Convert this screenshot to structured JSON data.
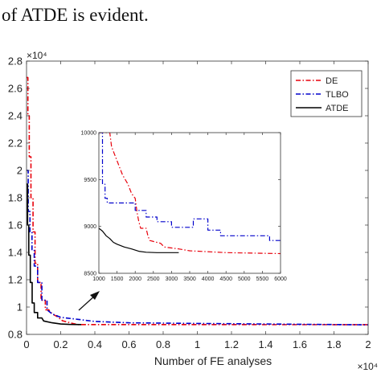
{
  "caption": "of ATDE is evident.",
  "chart_data": [
    {
      "type": "line",
      "title": "",
      "xlabel": "Number of FE analyses",
      "ylabel": "",
      "x_exponent": "×10⁴",
      "y_exponent": "×10⁴",
      "xlim": [
        0,
        20000
      ],
      "ylim": [
        8000,
        28000
      ],
      "x_ticks": [
        0,
        2000,
        4000,
        6000,
        8000,
        10000,
        12000,
        14000,
        16000,
        18000,
        20000
      ],
      "x_tick_labels": [
        "0",
        "0.2",
        "0.4",
        "0.6",
        "0.8",
        "1",
        "1.2",
        "1.4",
        "1.6",
        "1.8",
        "2"
      ],
      "y_ticks": [
        8000,
        10000,
        12000,
        14000,
        16000,
        18000,
        20000,
        22000,
        24000,
        26000,
        28000
      ],
      "y_tick_labels": [
        "0.8",
        "1",
        "1.2",
        "1.4",
        "1.6",
        "1.8",
        "2",
        "2.2",
        "2.4",
        "2.6",
        "2.8"
      ],
      "grid": false,
      "legend_position": "top-right",
      "series": [
        {
          "name": "DE",
          "color": "#e8000b",
          "style": "dashdot",
          "points": [
            [
              0,
              26800
            ],
            [
              80,
              26800
            ],
            [
              80,
              24000
            ],
            [
              160,
              24000
            ],
            [
              160,
              21000
            ],
            [
              260,
              21000
            ],
            [
              260,
              18000
            ],
            [
              380,
              18000
            ],
            [
              380,
              15500
            ],
            [
              500,
              15500
            ],
            [
              500,
              13200
            ],
            [
              650,
              13200
            ],
            [
              650,
              11800
            ],
            [
              850,
              11800
            ],
            [
              850,
              10500
            ],
            [
              1100,
              10500
            ],
            [
              1100,
              9800
            ],
            [
              1300,
              9800
            ],
            [
              1500,
              9500
            ],
            [
              1800,
              9300
            ],
            [
              2100,
              9000
            ],
            [
              2400,
              8900
            ],
            [
              2700,
              8800
            ],
            [
              3000,
              8720
            ],
            [
              20000,
              8710
            ]
          ]
        },
        {
          "name": "TLBO",
          "color": "#0000cc",
          "style": "dashdot",
          "points": [
            [
              0,
              20000
            ],
            [
              100,
              20000
            ],
            [
              100,
              17000
            ],
            [
              200,
              17000
            ],
            [
              200,
              15500
            ],
            [
              320,
              15500
            ],
            [
              320,
              14200
            ],
            [
              450,
              14200
            ],
            [
              450,
              13000
            ],
            [
              650,
              13000
            ],
            [
              650,
              11800
            ],
            [
              900,
              11800
            ],
            [
              900,
              10500
            ],
            [
              1200,
              10500
            ],
            [
              1200,
              9800
            ],
            [
              1500,
              9500
            ],
            [
              2000,
              9250
            ],
            [
              3000,
              9100
            ],
            [
              4000,
              8950
            ],
            [
              6000,
              8850
            ],
            [
              10000,
              8800
            ],
            [
              20000,
              8700
            ]
          ]
        },
        {
          "name": "ATDE",
          "color": "#000000",
          "style": "solid",
          "points": [
            [
              0,
              19000
            ],
            [
              60,
              19000
            ],
            [
              60,
              16000
            ],
            [
              130,
              16000
            ],
            [
              130,
              13800
            ],
            [
              220,
              13800
            ],
            [
              220,
              11800
            ],
            [
              330,
              11800
            ],
            [
              330,
              10300
            ],
            [
              450,
              10300
            ],
            [
              450,
              9600
            ],
            [
              650,
              9600
            ],
            [
              650,
              9200
            ],
            [
              900,
              9200
            ],
            [
              1000,
              8980
            ],
            [
              1500,
              8850
            ],
            [
              2000,
              8760
            ],
            [
              2500,
              8730
            ],
            [
              3200,
              8720
            ]
          ]
        }
      ]
    },
    {
      "type": "line",
      "title": "",
      "xlabel": "",
      "ylabel": "",
      "xlim": [
        1000,
        6000
      ],
      "ylim": [
        8500,
        10000
      ],
      "x_ticks": [
        1000,
        1500,
        2000,
        2500,
        3000,
        3500,
        4000,
        4500,
        5000,
        5500,
        6000
      ],
      "x_tick_labels": [
        "1000",
        "1500",
        "2000",
        "2500",
        "3000",
        "3500",
        "4000",
        "4500",
        "5000",
        "5500",
        "6000"
      ],
      "y_ticks": [
        8500,
        9000,
        9500,
        10000
      ],
      "y_tick_labels": [
        "8500",
        "9000",
        "9500",
        "10000"
      ],
      "grid": false,
      "series": [
        {
          "name": "DE",
          "color": "#e8000b",
          "style": "dashdot",
          "points": [
            [
              1000,
              10000
            ],
            [
              1300,
              10000
            ],
            [
              1350,
              9850
            ],
            [
              1500,
              9700
            ],
            [
              1650,
              9550
            ],
            [
              1800,
              9450
            ],
            [
              1900,
              9350
            ],
            [
              2000,
              9300
            ],
            [
              2050,
              9150
            ],
            [
              2100,
              9050
            ],
            [
              2150,
              8980
            ],
            [
              2300,
              8980
            ],
            [
              2350,
              8900
            ],
            [
              2400,
              8850
            ],
            [
              2700,
              8820
            ],
            [
              2800,
              8780
            ],
            [
              3200,
              8760
            ],
            [
              3500,
              8740
            ],
            [
              4500,
              8720
            ],
            [
              6000,
              8710
            ]
          ]
        },
        {
          "name": "TLBO",
          "color": "#0000cc",
          "style": "dashdot",
          "points": [
            [
              1000,
              10000
            ],
            [
              1100,
              10000
            ],
            [
              1100,
              9450
            ],
            [
              1170,
              9450
            ],
            [
              1170,
              9300
            ],
            [
              1230,
              9300
            ],
            [
              1230,
              9250
            ],
            [
              2000,
              9250
            ],
            [
              2000,
              9170
            ],
            [
              2300,
              9170
            ],
            [
              2300,
              9100
            ],
            [
              2600,
              9100
            ],
            [
              2600,
              9050
            ],
            [
              3000,
              9050
            ],
            [
              3000,
              8990
            ],
            [
              3600,
              8990
            ],
            [
              3600,
              9080
            ],
            [
              4000,
              9080
            ],
            [
              4000,
              8960
            ],
            [
              4350,
              8960
            ],
            [
              4350,
              8900
            ],
            [
              5700,
              8900
            ],
            [
              5700,
              8850
            ],
            [
              6000,
              8850
            ]
          ]
        },
        {
          "name": "ATDE",
          "color": "#000000",
          "style": "solid",
          "points": [
            [
              1000,
              8980
            ],
            [
              1100,
              8950
            ],
            [
              1200,
              8900
            ],
            [
              1300,
              8870
            ],
            [
              1400,
              8830
            ],
            [
              1500,
              8810
            ],
            [
              1700,
              8780
            ],
            [
              1900,
              8760
            ],
            [
              2100,
              8735
            ],
            [
              2300,
              8725
            ],
            [
              2600,
              8720
            ],
            [
              3200,
              8720
            ]
          ]
        }
      ]
    }
  ]
}
